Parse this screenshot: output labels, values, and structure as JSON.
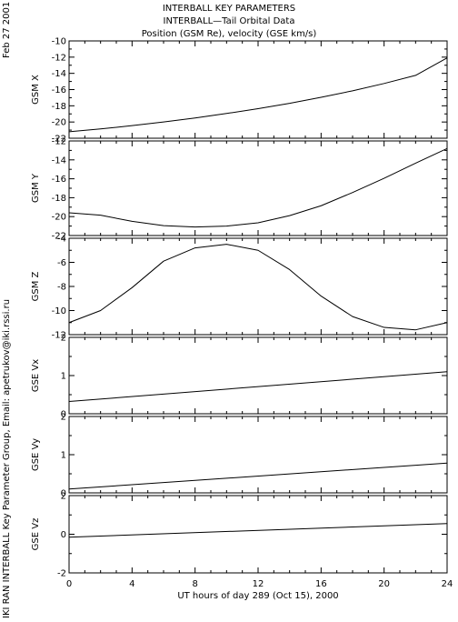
{
  "header": {
    "title1": "INTERBALL KEY PARAMETERS",
    "title2": "INTERBALL—Tail Orbital Data",
    "title3": "Position (GSM Re), velocity (GSE km/s)"
  },
  "side_date": "Feb 27 2001",
  "side_credit": "IKI RAN INTERBALL Key Parameter Group, Email: apetrukov@iki.rssi.ru",
  "chart_data": {
    "type": "line",
    "xlabel": "UT hours of day 289 (Oct 15), 2000",
    "xlim": [
      0,
      24
    ],
    "xticks": [
      "0",
      "4",
      "8",
      "12",
      "16",
      "20",
      "24"
    ],
    "panels": [
      {
        "ylabel": "GSM X",
        "ylim": [
          -22,
          -10
        ],
        "yticks": [
          "-10",
          "-12",
          "-14",
          "-16",
          "-18",
          "-20",
          "-22"
        ],
        "x": [
          0,
          2,
          4,
          6,
          8,
          10,
          12,
          14,
          16,
          18,
          20,
          22,
          24
        ],
        "values": [
          -21.2,
          -20.85,
          -20.45,
          -20.0,
          -19.5,
          -18.95,
          -18.35,
          -17.7,
          -16.95,
          -16.15,
          -15.25,
          -14.25,
          -12.1
        ]
      },
      {
        "ylabel": "GSM Y",
        "ylim": [
          -22,
          -12
        ],
        "yticks": [
          "-12",
          "-14",
          "-16",
          "-18",
          "-20",
          "-22"
        ],
        "x": [
          0,
          2,
          4,
          6,
          8,
          10,
          12,
          14,
          16,
          18,
          20,
          22,
          24
        ],
        "values": [
          -19.6,
          -19.85,
          -20.5,
          -20.95,
          -21.1,
          -21.0,
          -20.65,
          -19.9,
          -18.85,
          -17.45,
          -15.95,
          -14.35,
          -12.8
        ]
      },
      {
        "ylabel": "GSM Z",
        "ylim": [
          -12,
          -4
        ],
        "yticks": [
          "-4",
          "-6",
          "-8",
          "-10",
          "-12"
        ],
        "x": [
          0,
          2,
          4,
          6,
          8,
          10,
          12,
          14,
          16,
          18,
          20,
          22,
          24
        ],
        "values": [
          -11.0,
          -10.0,
          -8.1,
          -5.9,
          -4.8,
          -4.5,
          -5.0,
          -6.6,
          -8.8,
          -10.5,
          -11.4,
          -11.6,
          -11.0
        ]
      },
      {
        "ylabel": "GSE Vx",
        "ylim": [
          0,
          2
        ],
        "yticks": [
          "2",
          "1",
          "0"
        ],
        "x": [
          0,
          24
        ],
        "values": [
          0.32,
          1.1
        ]
      },
      {
        "ylabel": "GSE Vy",
        "ylim": [
          0,
          2
        ],
        "yticks": [
          "2",
          "1",
          "0"
        ],
        "x": [
          0,
          24
        ],
        "values": [
          0.1,
          0.78
        ]
      },
      {
        "ylabel": "GSE Vz",
        "ylim": [
          -2,
          2
        ],
        "yticks": [
          "2",
          "0",
          "-2"
        ],
        "x": [
          0,
          24
        ],
        "values": [
          -0.15,
          0.55
        ]
      }
    ]
  }
}
